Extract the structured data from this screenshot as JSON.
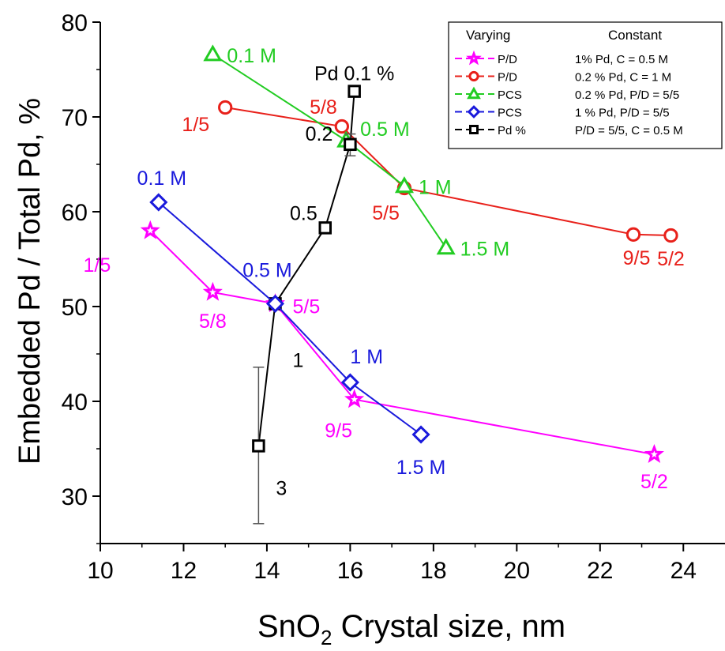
{
  "chart_data": {
    "type": "scatter",
    "xlabel_main": "SnO",
    "xlabel_sub": "2",
    "xlabel_rest": " Crystal size, nm",
    "ylabel": "Embedded Pd / Total Pd, %",
    "xlim": [
      10,
      25
    ],
    "ylim": [
      25,
      80
    ],
    "x_ticks": [
      "10",
      "12",
      "14",
      "16",
      "18",
      "20",
      "22",
      "24"
    ],
    "y_ticks": [
      "30",
      "40",
      "50",
      "60",
      "70",
      "80"
    ],
    "legend": {
      "header_varying": "Varying",
      "header_constant": "Constant",
      "entries": [
        {
          "varying": "P/D",
          "constant": "1% Pd, C = 0.5 M"
        },
        {
          "varying": "P/D",
          "constant": "0.2 % Pd, C = 1 M"
        },
        {
          "varying": "PCS",
          "constant": "0.2 % Pd, P/D = 5/5"
        },
        {
          "varying": "PCS",
          "constant": "1 % Pd, P/D = 5/5"
        },
        {
          "varying": "Pd %",
          "constant": "P/D = 5/5, C = 0.5 M"
        }
      ]
    },
    "series": [
      {
        "marker": "star",
        "color": "#ff00ff",
        "points": [
          {
            "x": 11.2,
            "y": 58.0,
            "label": "1/5"
          },
          {
            "x": 12.7,
            "y": 51.5,
            "label": "5/8"
          },
          {
            "x": 14.2,
            "y": 50.3,
            "label": "5/5"
          },
          {
            "x": 16.1,
            "y": 40.2,
            "label": "9/5"
          },
          {
            "x": 23.3,
            "y": 34.4,
            "label": "5/2"
          }
        ]
      },
      {
        "marker": "circle",
        "color": "#e8201a",
        "points": [
          {
            "x": 13.0,
            "y": 71.0,
            "label": "1/5"
          },
          {
            "x": 15.8,
            "y": 69.0,
            "label": "5/8"
          },
          {
            "x": 17.3,
            "y": 62.5,
            "label": "5/5"
          },
          {
            "x": 22.8,
            "y": 57.6,
            "label": "9/5"
          },
          {
            "x": 23.7,
            "y": 57.5,
            "label": "5/2"
          }
        ]
      },
      {
        "marker": "triangle",
        "color": "#22cc22",
        "points": [
          {
            "x": 12.7,
            "y": 76.6,
            "label": "0.1 M"
          },
          {
            "x": 15.9,
            "y": 67.5,
            "label": "0.5 M"
          },
          {
            "x": 17.3,
            "y": 62.7,
            "label": "1 M"
          },
          {
            "x": 18.3,
            "y": 56.2,
            "label": "1.5 M"
          }
        ]
      },
      {
        "marker": "diamond",
        "color": "#1a1adc",
        "points": [
          {
            "x": 11.4,
            "y": 61.0,
            "label": "0.1 M"
          },
          {
            "x": 14.2,
            "y": 50.3,
            "label": "0.5 M"
          },
          {
            "x": 16.0,
            "y": 42.0,
            "label": "1 M"
          },
          {
            "x": 17.7,
            "y": 36.5,
            "label": "1.5 M"
          }
        ]
      },
      {
        "marker": "square",
        "color": "#000000",
        "points": [
          {
            "x": 13.8,
            "y": 35.3,
            "label": "3",
            "err": [
              27.1,
              43.6
            ]
          },
          {
            "x": 14.2,
            "y": 50.3,
            "label": "1"
          },
          {
            "x": 15.4,
            "y": 58.3,
            "label": "0.5"
          },
          {
            "x": 16.0,
            "y": 67.1,
            "label": "0.2",
            "err": [
              65.9,
              68.2
            ]
          },
          {
            "x": 16.1,
            "y": 72.7,
            "label": "Pd 0.1 %"
          }
        ]
      }
    ]
  }
}
